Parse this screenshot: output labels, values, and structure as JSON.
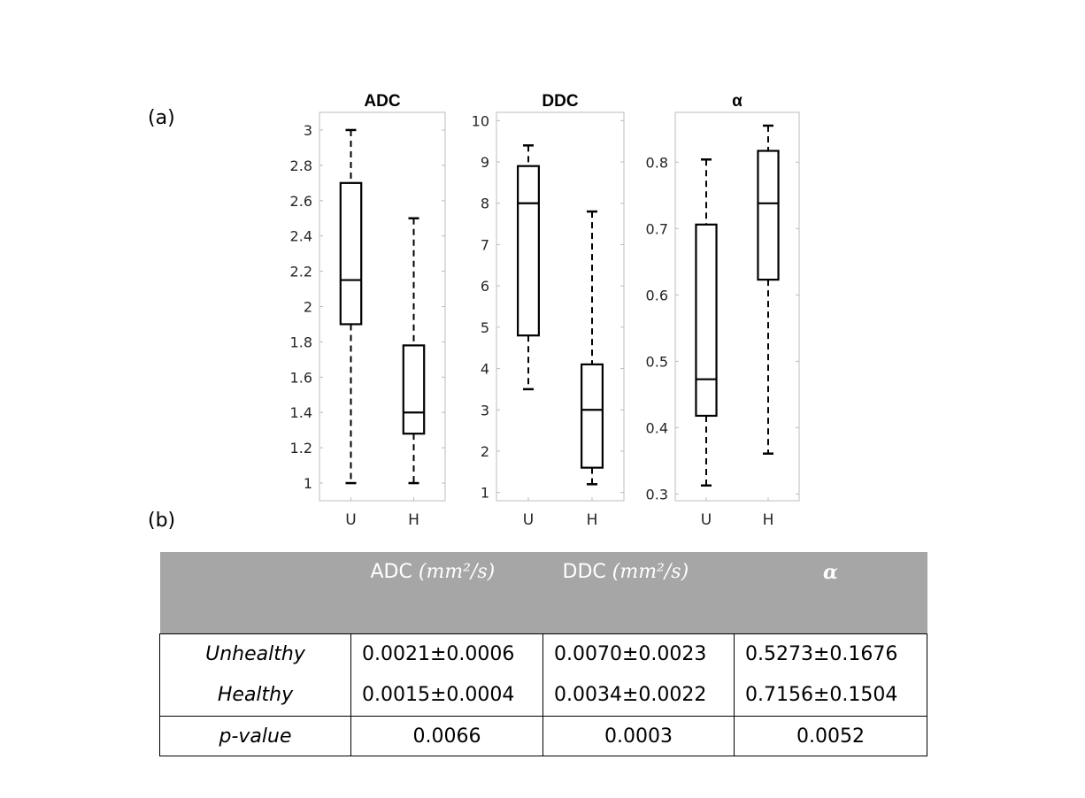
{
  "panel_labels": {
    "a": "(a)",
    "b": "(b)"
  },
  "chart_data": [
    {
      "type": "box",
      "title": "ADC",
      "categories": [
        "U",
        "H"
      ],
      "ylim": [
        0.9,
        3.1
      ],
      "yticks": [
        1,
        1.2,
        1.4,
        1.6,
        1.8,
        2,
        2.2,
        2.4,
        2.6,
        2.8,
        3
      ],
      "ytick_labels": [
        "1",
        "1.2",
        "1.4",
        "1.6",
        "1.8",
        "2",
        "2.2",
        "2.4",
        "2.6",
        "2.8",
        "3"
      ],
      "boxes": [
        {
          "category": "U",
          "min": 1.0,
          "q1": 1.9,
          "median": 2.15,
          "q3": 2.7,
          "max": 3.0
        },
        {
          "category": "H",
          "min": 1.0,
          "q1": 1.28,
          "median": 1.4,
          "q3": 1.78,
          "max": 2.5
        }
      ]
    },
    {
      "type": "box",
      "title": "DDC",
      "categories": [
        "U",
        "H"
      ],
      "ylim": [
        0.8,
        10.2
      ],
      "yticks": [
        1,
        2,
        3,
        4,
        5,
        6,
        7,
        8,
        9,
        10
      ],
      "ytick_labels": [
        "1",
        "2",
        "3",
        "4",
        "5",
        "6",
        "7",
        "8",
        "9",
        "10"
      ],
      "boxes": [
        {
          "category": "U",
          "min": 3.5,
          "q1": 4.8,
          "median": 8.0,
          "q3": 8.9,
          "max": 9.4
        },
        {
          "category": "H",
          "min": 1.2,
          "q1": 1.6,
          "median": 3.0,
          "q3": 4.1,
          "max": 7.8
        }
      ]
    },
    {
      "type": "box",
      "title": "α",
      "categories": [
        "U",
        "H"
      ],
      "ylim": [
        0.29,
        0.875
      ],
      "yticks": [
        0.3,
        0.4,
        0.5,
        0.6,
        0.7,
        0.8
      ],
      "ytick_labels": [
        "0.3",
        "0.4",
        "0.5",
        "0.6",
        "0.7",
        "0.8"
      ],
      "boxes": [
        {
          "category": "U",
          "min": 0.313,
          "q1": 0.418,
          "median": 0.473,
          "q3": 0.706,
          "max": 0.804
        },
        {
          "category": "H",
          "min": 0.361,
          "q1": 0.623,
          "median": 0.738,
          "q3": 0.817,
          "max": 0.855
        }
      ]
    }
  ],
  "table": {
    "headers": [
      {
        "label": "",
        "unit": ""
      },
      {
        "label": "ADC ",
        "unit": "(mm²/s)"
      },
      {
        "label": "DDC ",
        "unit": "(mm²/s)"
      },
      {
        "label": "",
        "unit": "α"
      }
    ],
    "row_names": {
      "unhealthy": "Unhealthy",
      "healthy": "Healthy",
      "pvalue": "p-value"
    },
    "unhealthy": [
      "0.0021±0.0006",
      "0.0070±0.0023",
      "0.5273±0.1676"
    ],
    "healthy": [
      "0.0015±0.0004",
      "0.0034±0.0022",
      "0.7156±0.1504"
    ],
    "pvalue": [
      "0.0066",
      "0.0003",
      "0.0052"
    ]
  }
}
